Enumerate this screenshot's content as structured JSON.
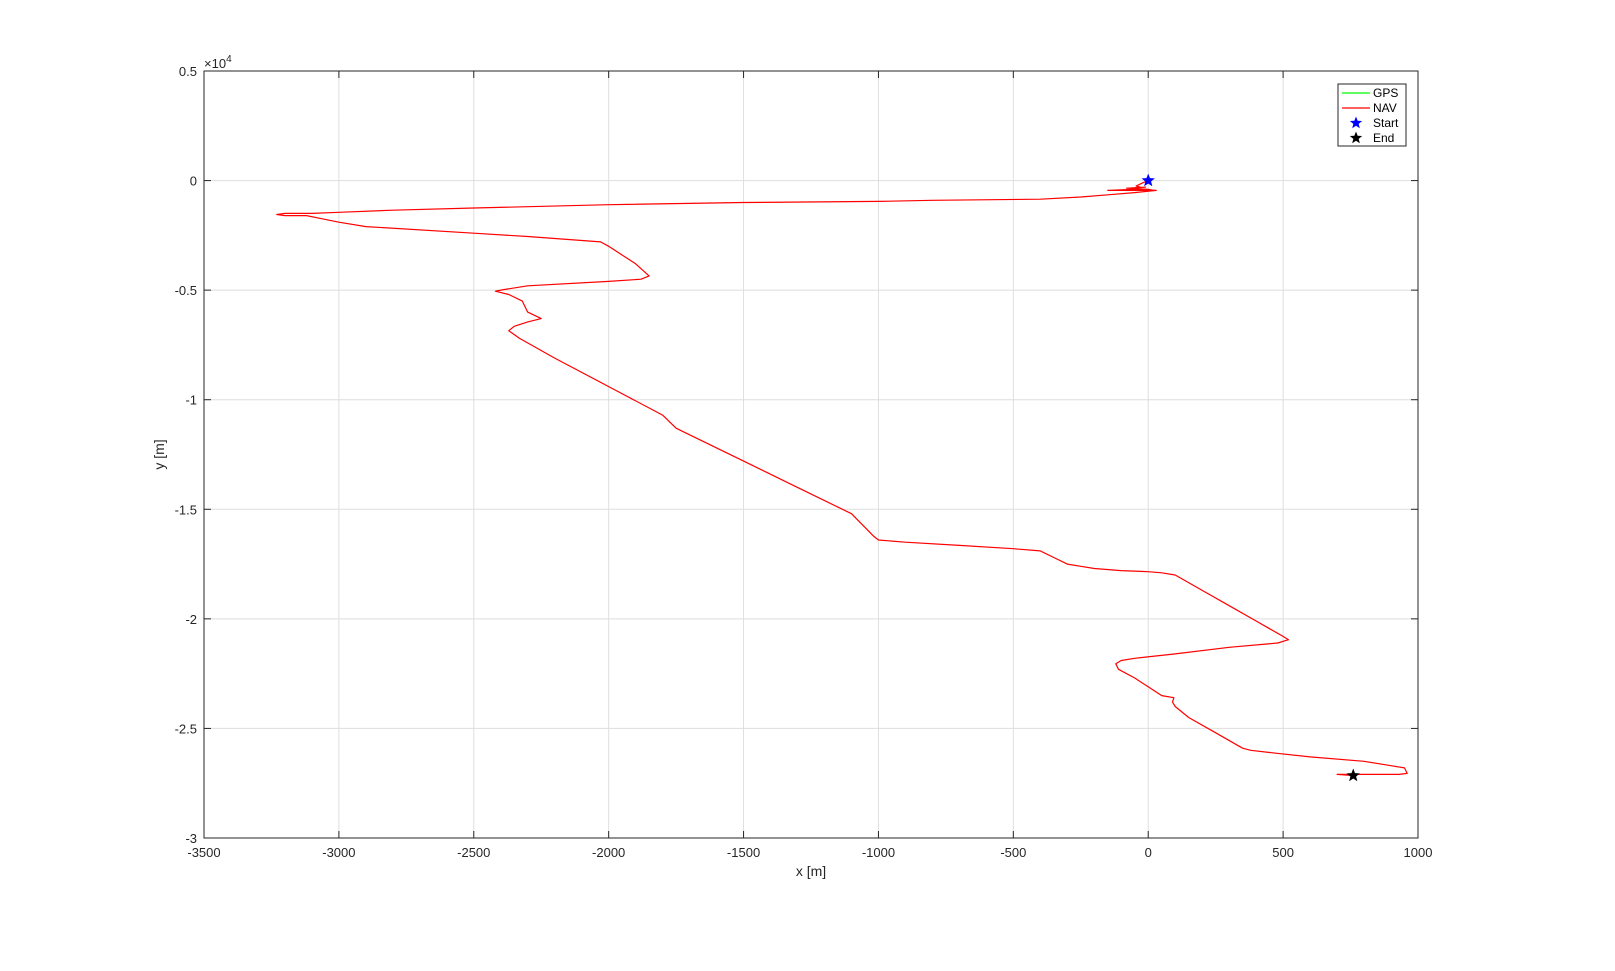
{
  "chart_data": {
    "type": "line",
    "xlabel": "x [m]",
    "ylabel": "y [m]",
    "xlim": [
      -3500,
      1000
    ],
    "ylim": [
      -30000,
      5000
    ],
    "x_ticks": [
      -3500,
      -3000,
      -2500,
      -2000,
      -1500,
      -1000,
      -500,
      0,
      500,
      1000
    ],
    "x_tick_labels": [
      "-3500",
      "-3000",
      "-2500",
      "-2000",
      "-1500",
      "-1000",
      "-500",
      "0",
      "500",
      "1000"
    ],
    "y_ticks": [
      5000,
      0,
      -5000,
      -10000,
      -15000,
      -20000,
      -25000,
      -30000
    ],
    "y_tick_labels": [
      "0.5",
      "0",
      "-0.5",
      "-1",
      "-1.5",
      "-2",
      "-2.5",
      "-3"
    ],
    "y_exponent_label": "×10",
    "y_exponent_power": "4",
    "grid": true,
    "legend_position": "top-right",
    "legend": [
      {
        "label": "GPS",
        "color": "#00ff00",
        "marker": "line"
      },
      {
        "label": "NAV",
        "color": "#ff0000",
        "marker": "line"
      },
      {
        "label": "Start",
        "color": "#0000ff",
        "marker": "star"
      },
      {
        "label": "End",
        "color": "#000000",
        "marker": "star"
      }
    ],
    "series": [
      {
        "name": "GPS",
        "color": "#00ff00",
        "x": [],
        "y": []
      },
      {
        "name": "NAV",
        "color": "#ff0000",
        "x": [
          0,
          -20,
          -45,
          -30,
          -60,
          -10,
          -80,
          0,
          20,
          -150,
          -50,
          30,
          -50,
          -150,
          -250,
          -400,
          -800,
          -1000,
          -1500,
          -2000,
          -2500,
          -2800,
          -3000,
          -3100,
          -3200,
          -3230,
          -3200,
          -3120,
          -3080,
          -3000,
          -2900,
          -2500,
          -2300,
          -2030,
          -2000,
          -1900,
          -1850,
          -1880,
          -2000,
          -2300,
          -2400,
          -2420,
          -2370,
          -2320,
          -2300,
          -2250,
          -2300,
          -2350,
          -2370,
          -2330,
          -2200,
          -2000,
          -1800,
          -1750,
          -1700,
          -1500,
          -1300,
          -1100,
          -1020,
          -1000,
          -900,
          -700,
          -500,
          -400,
          -350,
          -300,
          -250,
          -200,
          -100,
          0,
          50,
          100,
          200,
          300,
          400,
          500,
          520,
          480,
          300,
          100,
          -50,
          -100,
          -120,
          -110,
          -50,
          0,
          50,
          95,
          90,
          100,
          150,
          250,
          350,
          380,
          450,
          600,
          800,
          900,
          950,
          960,
          930,
          800,
          700,
          760
        ],
        "y": [
          0,
          -100,
          -250,
          -300,
          -350,
          -300,
          -350,
          -400,
          -450,
          -450,
          -400,
          -450,
          -550,
          -650,
          -750,
          -850,
          -900,
          -950,
          -1000,
          -1100,
          -1250,
          -1350,
          -1450,
          -1500,
          -1500,
          -1550,
          -1600,
          -1600,
          -1700,
          -1900,
          -2100,
          -2400,
          -2550,
          -2800,
          -3000,
          -3800,
          -4350,
          -4500,
          -4600,
          -4800,
          -5000,
          -5050,
          -5200,
          -5500,
          -6000,
          -6300,
          -6450,
          -6650,
          -6850,
          -7200,
          -8100,
          -9400,
          -10700,
          -11300,
          -11600,
          -12800,
          -14000,
          -15200,
          -16200,
          -16400,
          -16500,
          -16650,
          -16800,
          -16900,
          -17200,
          -17500,
          -17600,
          -17700,
          -17800,
          -17850,
          -17900,
          -18000,
          -18700,
          -19400,
          -20100,
          -20800,
          -20950,
          -21100,
          -21300,
          -21600,
          -21800,
          -21900,
          -22050,
          -22300,
          -22700,
          -23100,
          -23500,
          -23600,
          -23800,
          -24000,
          -24500,
          -25200,
          -25900,
          -26000,
          -26100,
          -26300,
          -26500,
          -26700,
          -26800,
          -27050,
          -27100,
          -27100,
          -27100,
          -27150
        ]
      }
    ],
    "start_point": {
      "x": 0,
      "y": 0,
      "color": "#0000ff"
    },
    "end_point": {
      "x": 760,
      "y": -27150,
      "color": "#000000"
    }
  }
}
